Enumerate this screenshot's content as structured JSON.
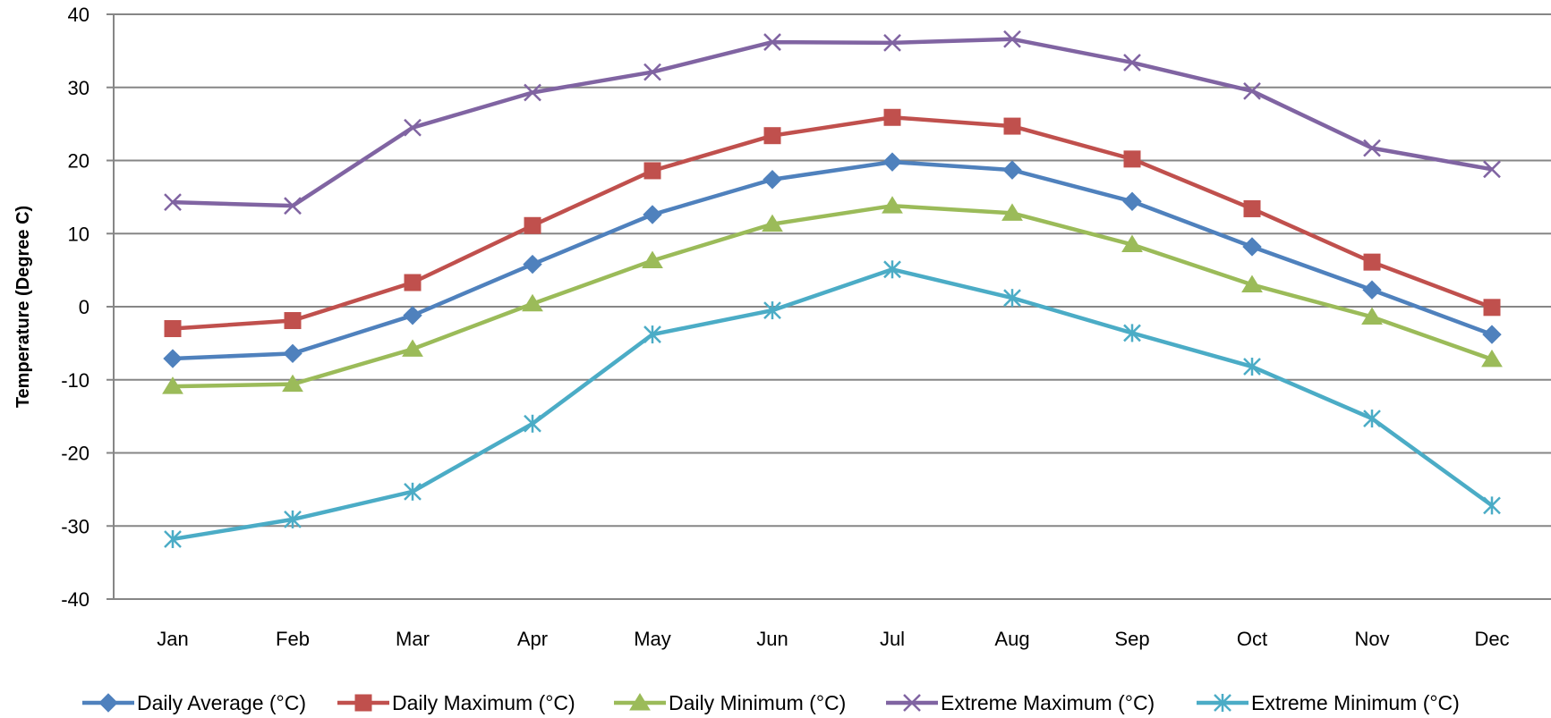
{
  "chart_data": {
    "type": "line",
    "title": "",
    "xlabel": "",
    "ylabel": "Temperature (Degree C)",
    "ylim": [
      -40,
      40
    ],
    "yticks": [
      40,
      30,
      20,
      10,
      0,
      -10,
      -20,
      -30,
      -40
    ],
    "ytick_labels": [
      "40",
      "30",
      "20",
      "10",
      "0",
      "-10",
      "-20",
      "-30",
      "-40"
    ],
    "grid": true,
    "legend_position": "bottom",
    "categories": [
      "Jan",
      "Feb",
      "Mar",
      "Apr",
      "May",
      "Jun",
      "Jul",
      "Aug",
      "Sep",
      "Oct",
      "Nov",
      "Dec"
    ],
    "series": [
      {
        "name": "Daily Average (°C)",
        "color": "#4F81BD",
        "marker": "diamond",
        "values": [
          -7.1,
          -6.4,
          -1.2,
          5.8,
          12.6,
          17.4,
          19.8,
          18.7,
          14.4,
          8.2,
          2.3,
          -3.8
        ]
      },
      {
        "name": "Daily Maximum (°C)",
        "color": "#C0504D",
        "marker": "square",
        "values": [
          -3.0,
          -1.9,
          3.3,
          11.1,
          18.6,
          23.4,
          25.9,
          24.7,
          20.2,
          13.4,
          6.1,
          -0.1
        ]
      },
      {
        "name": "Daily Minimum (°C)",
        "color": "#9BBB59",
        "marker": "triangle",
        "values": [
          -10.9,
          -10.6,
          -5.8,
          0.4,
          6.3,
          11.3,
          13.8,
          12.8,
          8.5,
          3.0,
          -1.4,
          -7.2
        ]
      },
      {
        "name": "Extreme Maximum (°C)",
        "color": "#8064A2",
        "marker": "x",
        "values": [
          14.3,
          13.8,
          24.5,
          29.3,
          32.1,
          36.2,
          36.1,
          36.6,
          33.4,
          29.5,
          21.7,
          18.8
        ]
      },
      {
        "name": "Extreme Minimum (°C)",
        "color": "#4BACC6",
        "marker": "star",
        "values": [
          -31.8,
          -29.1,
          -25.3,
          -16.0,
          -3.8,
          -0.5,
          5.1,
          1.2,
          -3.6,
          -8.2,
          -15.3,
          -27.2
        ]
      }
    ]
  }
}
